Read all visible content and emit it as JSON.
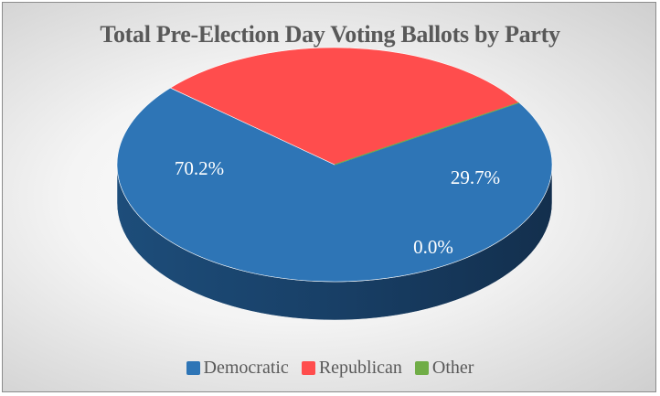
{
  "chart_data": {
    "type": "pie",
    "title": "Total Pre-Election Day Voting Ballots by Party",
    "categories": [
      "Democratic",
      "Republican",
      "Other"
    ],
    "values": [
      70.2,
      29.7,
      0.0
    ],
    "data_labels": [
      "70.2%",
      "29.7%",
      "0.0%"
    ],
    "colors": [
      "#2e75b6",
      "#ff4d4d",
      "#70ad47"
    ],
    "style": "3d",
    "legend_position": "bottom"
  }
}
